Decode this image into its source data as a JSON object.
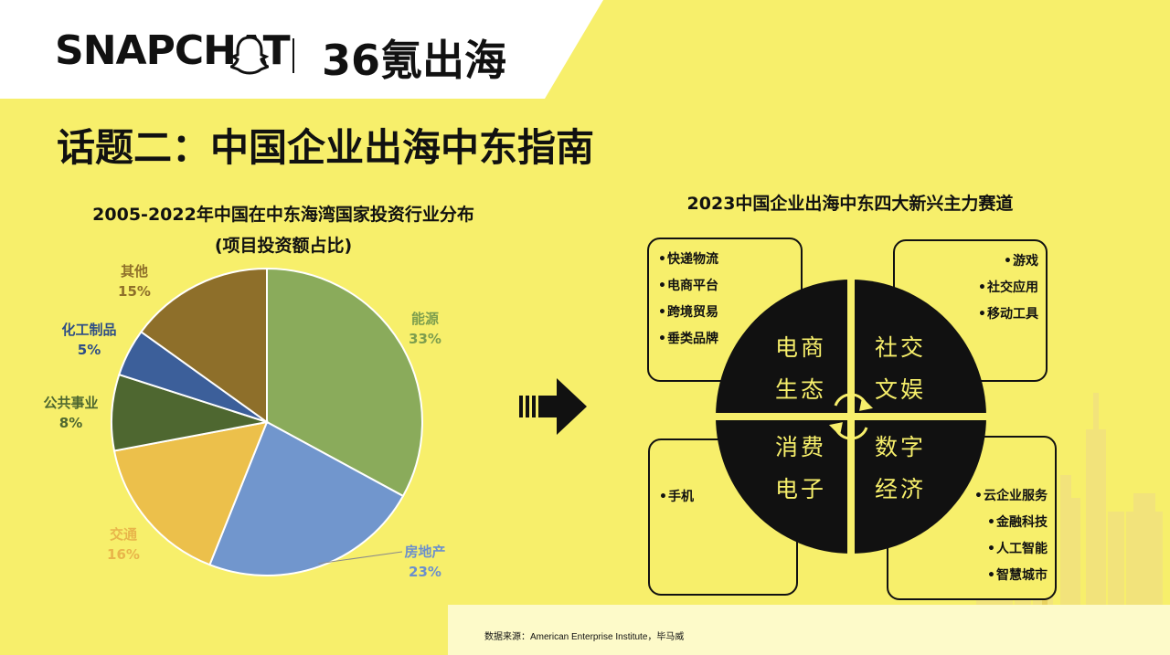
{
  "header": {
    "logo_text": "SNAPCHAT",
    "partner_logo": "36氪出海",
    "ghost_icon": "snapchat-ghost-icon"
  },
  "page_title": "话题二：中国企业出海中东指南",
  "chart_data": {
    "type": "pie",
    "title": "2005-2022年中国在中东海湾国家投资行业分布",
    "subtitle": "(项目投资额占比)",
    "categories": [
      "能源",
      "房地产",
      "交通",
      "公共事业",
      "化工制品",
      "其他"
    ],
    "values": [
      33,
      23,
      16,
      8,
      5,
      15
    ],
    "value_labels": [
      "33%",
      "23%",
      "16%",
      "8%",
      "5%",
      "15%"
    ],
    "colors": [
      "#8aab5b",
      "#7196cd",
      "#ecc04b",
      "#4e6730",
      "#3c5f9a",
      "#8e6f2a"
    ],
    "label_colors": [
      "#7d9e4e",
      "#6b8fcd",
      "#e8b54a",
      "#4e6730",
      "#2f4e86",
      "#8e6f2a"
    ]
  },
  "right": {
    "title": "2023中国企业出海中东四大新兴主力赛道",
    "quadrants": {
      "top_left": "电商生态",
      "top_right": "社交文娱",
      "bottom_left": "消费电子",
      "bottom_right": "数字经济"
    },
    "boxes": {
      "top_left": [
        "快递物流",
        "电商平台",
        "跨境贸易",
        "垂类品牌"
      ],
      "top_right": [
        "游戏",
        "社交应用",
        "移动工具"
      ],
      "bottom_left": [
        "手机"
      ],
      "bottom_right": [
        "云企业服务",
        "金融科技",
        "人工智能",
        "智慧城市"
      ]
    },
    "quadrant_lines": {
      "top_left": [
        "电商",
        "生态"
      ],
      "top_right": [
        "社交",
        "文娱"
      ],
      "bottom_left": [
        "消费",
        "电子"
      ],
      "bottom_right": [
        "数字",
        "经济"
      ]
    }
  },
  "footer": {
    "source": "数据来源：American Enterprise Institute，毕马威"
  },
  "colors": {
    "background": "#f7ef6b",
    "header_band": "#ffffff",
    "ink": "#111111",
    "quadrant_text": "#f7ef6b",
    "footer_band": "#fdfac9"
  }
}
